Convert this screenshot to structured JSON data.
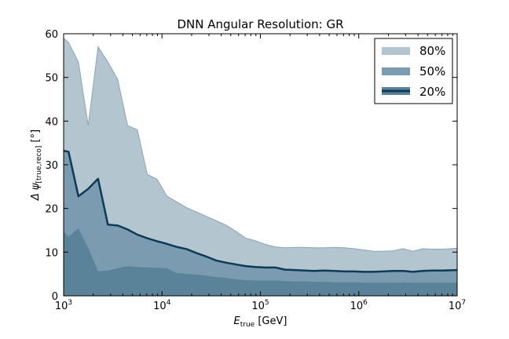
{
  "chart_data": {
    "type": "area",
    "title": "DNN Angular Resolution: GR",
    "xlabel": {
      "main": "E",
      "sub": "true",
      "rest": " [GeV]"
    },
    "ylabel": {
      "main": "Δ ψ",
      "sub": "[true,reco]",
      "rest": " [°]"
    },
    "x_scale": "log",
    "xlim": [
      1000,
      10000000
    ],
    "ylim": [
      0,
      60
    ],
    "grid": false,
    "legend_position": "top-right",
    "x_ticks": [
      {
        "value": 1000,
        "base": "10",
        "exp": "3"
      },
      {
        "value": 10000,
        "base": "10",
        "exp": "4"
      },
      {
        "value": 100000,
        "base": "10",
        "exp": "5"
      },
      {
        "value": 1000000,
        "base": "10",
        "exp": "6"
      },
      {
        "value": 10000000,
        "base": "10",
        "exp": "7"
      }
    ],
    "y_ticks": [
      {
        "value": 0,
        "label": "0"
      },
      {
        "value": 10,
        "label": "10"
      },
      {
        "value": 20,
        "label": "20"
      },
      {
        "value": 30,
        "label": "30"
      },
      {
        "value": 40,
        "label": "40"
      },
      {
        "value": 50,
        "label": "50"
      },
      {
        "value": 60,
        "label": "60"
      }
    ],
    "x": [
      1000,
      1122,
      1413,
      1778,
      2239,
      2818,
      3548,
      4467,
      5623,
      7079,
      8913,
      11220,
      14125,
      17783,
      22387,
      28184,
      35481,
      44668,
      56234,
      70795,
      89125,
      112202,
      141254,
      177828,
      223872,
      281838,
      354813,
      446684,
      562341,
      707946,
      891251,
      1122018,
      1412538,
      1778279,
      2238721,
      2818383,
      3548134,
      4466836,
      5623413,
      7079458,
      10000000
    ],
    "series": [
      {
        "name": "80%",
        "color": "#b3c5cf",
        "edge_color": "#8aa5b5",
        "values": [
          59.0,
          58.0,
          53.5,
          39.0,
          57.0,
          53.5,
          49.5,
          39.0,
          38.0,
          27.8,
          26.7,
          22.8,
          21.5,
          20.2,
          19.2,
          18.2,
          17.2,
          16.2,
          14.8,
          13.2,
          12.6,
          11.8,
          11.2,
          11.0,
          11.1,
          11.1,
          11.0,
          11.0,
          11.1,
          11.0,
          10.8,
          10.5,
          10.2,
          10.2,
          10.3,
          10.8,
          10.2,
          10.8,
          10.7,
          10.7,
          10.9
        ]
      },
      {
        "name": "50%",
        "color": "#7b9cb0",
        "edge_color": "#5f8299",
        "values": [
          33.2,
          33.0,
          22.8,
          24.5,
          26.8,
          16.3,
          16.1,
          15.2,
          14.0,
          13.2,
          12.5,
          11.9,
          11.2,
          10.7,
          9.8,
          9.0,
          8.1,
          7.6,
          7.2,
          6.8,
          6.6,
          6.5,
          6.5,
          6.0,
          5.9,
          5.8,
          5.7,
          5.8,
          5.7,
          5.6,
          5.6,
          5.5,
          5.5,
          5.6,
          5.7,
          5.7,
          5.5,
          5.7,
          5.8,
          5.8,
          5.9
        ]
      },
      {
        "name": "20%",
        "color": "#5a8298",
        "edge_color": "#5a8298",
        "values": [
          14.8,
          13.5,
          15.5,
          11.0,
          5.6,
          5.8,
          6.3,
          6.8,
          6.6,
          6.5,
          6.4,
          6.3,
          5.2,
          5.0,
          4.9,
          4.6,
          4.3,
          4.1,
          3.8,
          3.6,
          3.5,
          3.5,
          3.5,
          3.4,
          3.3,
          3.3,
          3.2,
          3.2,
          3.1,
          3.1,
          3.1,
          3.0,
          3.0,
          3.0,
          3.0,
          3.1,
          3.0,
          3.0,
          3.0,
          3.0,
          3.0
        ]
      }
    ],
    "median_line_color": "#0d3a56"
  }
}
